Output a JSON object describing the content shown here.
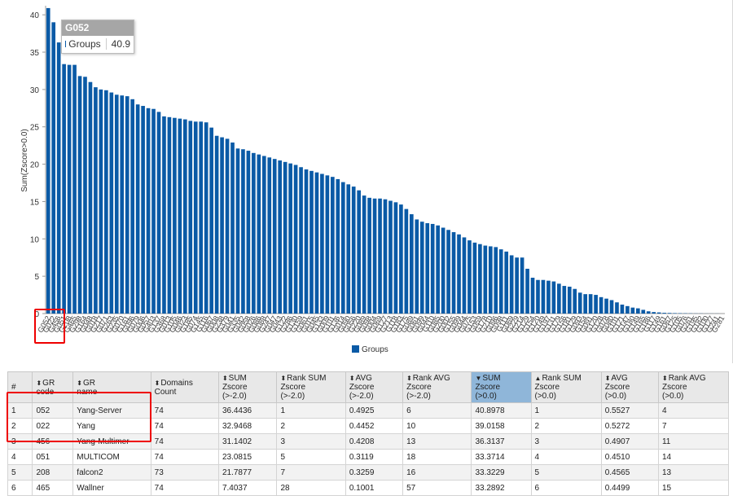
{
  "chart_data": {
    "type": "bar",
    "ylabel": "Sum(Zscore>0.0)",
    "ylim": [
      0,
      41
    ],
    "y_ticks": [
      0,
      5,
      10,
      15,
      20,
      25,
      30,
      35,
      40
    ],
    "legend": "Groups",
    "legend_position": "bottom",
    "series": [
      {
        "name": "Groups",
        "color": "#0a5aa6"
      }
    ],
    "categories": [
      "G052",
      "G022",
      "G456",
      "G051",
      "G208",
      "G465",
      "G298",
      "G164",
      "G048",
      "G018",
      "G217",
      "G071",
      "G263",
      "G235",
      "G070",
      "G161",
      "G096",
      "G079",
      "G006",
      "G057",
      "G403",
      "G137",
      "G368",
      "G013",
      "G105",
      "G046",
      "G023",
      "G185",
      "G074",
      "G145",
      "G116",
      "G067",
      "G008",
      "G238",
      "G379",
      "G041",
      "G335",
      "G042",
      "G058",
      "G026",
      "G086",
      "G088",
      "G247",
      "G047",
      "G043",
      "G122",
      "G286",
      "G130",
      "G159",
      "G061",
      "G015",
      "G045",
      "G133",
      "G009",
      "G101",
      "G136",
      "G014",
      "G090",
      "G056",
      "G220",
      "G089",
      "G098",
      "G004",
      "G069",
      "G127",
      "G213",
      "G118",
      "G183",
      "G175",
      "G089",
      "G061",
      "G099",
      "G044",
      "G110",
      "G085",
      "G200",
      "G002",
      "G155",
      "G099",
      "G044",
      "G075",
      "G153",
      "G059",
      "G178",
      "G210",
      "G096",
      "G098",
      "G111",
      "G069",
      "G229",
      "G214",
      "G129",
      "G154",
      "G120",
      "G149",
      "G197",
      "G131",
      "G179",
      "G156",
      "G181",
      "G129",
      "G093",
      "G154",
      "G091",
      "G120",
      "G128",
      "G078",
      "G080",
      "G101",
      "G121",
      "G147",
      "G180",
      "G149",
      "G165",
      "G186",
      "G117",
      "G149",
      "G161",
      "G067",
      "G125",
      "G105",
      "G076",
      "G261",
      "G195",
      "G182",
      "G100",
      "G127",
      "G241",
      "G281"
    ],
    "values": [
      40.9,
      39.0,
      36.3,
      33.4,
      33.3,
      33.3,
      31.8,
      31.7,
      31.0,
      30.3,
      30.0,
      29.9,
      29.6,
      29.3,
      29.2,
      29.1,
      28.7,
      28.0,
      27.8,
      27.5,
      27.4,
      27.0,
      26.4,
      26.3,
      26.2,
      26.1,
      26.0,
      25.8,
      25.7,
      25.7,
      25.6,
      24.9,
      23.8,
      23.6,
      23.4,
      22.9,
      22.1,
      22.0,
      21.8,
      21.5,
      21.3,
      21.1,
      20.9,
      20.7,
      20.5,
      20.3,
      20.1,
      19.9,
      19.6,
      19.3,
      19.1,
      18.9,
      18.7,
      18.5,
      18.3,
      18.0,
      17.6,
      17.3,
      17.0,
      16.5,
      15.8,
      15.5,
      15.4,
      15.4,
      15.3,
      15.1,
      14.9,
      14.6,
      14.0,
      13.3,
      12.6,
      12.3,
      12.1,
      12.0,
      11.8,
      11.5,
      11.2,
      10.9,
      10.6,
      10.2,
      9.8,
      9.5,
      9.3,
      9.1,
      9.0,
      8.9,
      8.6,
      8.3,
      7.8,
      7.5,
      7.5,
      6.0,
      4.8,
      4.5,
      4.5,
      4.4,
      4.3,
      4.0,
      3.7,
      3.6,
      3.3,
      2.8,
      2.6,
      2.6,
      2.5,
      2.2,
      2.0,
      1.8,
      1.5,
      1.2,
      1.0,
      0.8,
      0.7,
      0.5,
      0.3,
      0.2,
      0.15,
      0.1,
      0.08,
      0.06,
      0.05,
      0.04,
      0.03,
      0.02,
      0.02,
      0.01,
      0.01,
      0.01,
      0.0
    ]
  },
  "tooltip": {
    "title": "G052",
    "series_name": "Groups",
    "value": "40.9"
  },
  "table": {
    "headers": [
      {
        "line1": "#",
        "line2": ""
      },
      {
        "line1": "GR",
        "line2": "code"
      },
      {
        "line1": "GR",
        "line2": "name"
      },
      {
        "line1": "Domains Count",
        "line2": ""
      },
      {
        "line1": "SUM Zscore",
        "line2": "(>-2.0)"
      },
      {
        "line1": "Rank SUM Zscore",
        "line2": "(>-2.0)"
      },
      {
        "line1": "AVG Zscore",
        "line2": "(>-2.0)"
      },
      {
        "line1": "Rank AVG Zscore",
        "line2": "(>-2.0)"
      },
      {
        "line1": "SUM Zscore",
        "line2": "(>0.0)"
      },
      {
        "line1": "Rank SUM Zscore",
        "line2": "(>0.0)"
      },
      {
        "line1": "AVG Zscore",
        "line2": "(>0.0)"
      },
      {
        "line1": "Rank AVG Zscore",
        "line2": "(>0.0)"
      }
    ],
    "rows": [
      [
        "1",
        "052",
        "Yang-Server",
        "74",
        "36.4436",
        "1",
        "0.4925",
        "6",
        "40.8978",
        "1",
        "0.5527",
        "4"
      ],
      [
        "2",
        "022",
        "Yang",
        "74",
        "32.9468",
        "2",
        "0.4452",
        "10",
        "39.0158",
        "2",
        "0.5272",
        "7"
      ],
      [
        "3",
        "456",
        "Yang-Multimer",
        "74",
        "31.1402",
        "3",
        "0.4208",
        "13",
        "36.3137",
        "3",
        "0.4907",
        "11"
      ],
      [
        "4",
        "051",
        "MULTICOM",
        "74",
        "23.0815",
        "5",
        "0.3119",
        "18",
        "33.3714",
        "4",
        "0.4510",
        "14"
      ],
      [
        "5",
        "208",
        "falcon2",
        "73",
        "21.7877",
        "7",
        "0.3259",
        "16",
        "33.3229",
        "5",
        "0.4565",
        "13"
      ],
      [
        "6",
        "465",
        "Wallner",
        "74",
        "7.4037",
        "28",
        "0.1001",
        "57",
        "33.2892",
        "6",
        "0.4499",
        "15"
      ]
    ]
  }
}
